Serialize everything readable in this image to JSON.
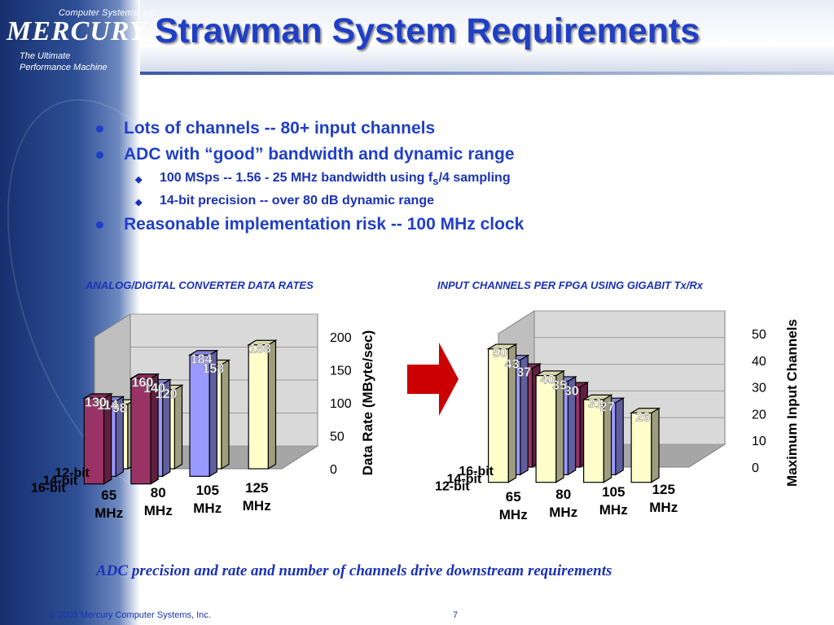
{
  "branding": {
    "company_small": "Computer Systems, Inc.",
    "company_name": "MERCURY",
    "tagline_line1": "The Ultimate",
    "tagline_line2": "Performance Machine"
  },
  "slide": {
    "title": "Strawman System Requirements",
    "bullets": [
      "Lots of channels -- 80+ input channels",
      "ADC with “good” bandwidth and dynamic range",
      "Reasonable implementation risk -- 100 MHz clock"
    ],
    "sub_bullets": {
      "first_prefix": "100 MSps -- 1.56 - 25 MHz bandwidth using f",
      "first_subscript": "s",
      "first_suffix": "/4 sampling",
      "second": "14-bit precision -- over 80 dB dynamic range"
    },
    "caption": "ADC precision and rate and number of channels drive downstream requirements",
    "footer_copyright": "© 2003 Mercury Computer Systems, Inc.",
    "page_number": "7"
  },
  "colors": {
    "series_16bit": "#993366",
    "series_14bit": "#9999ff",
    "series_12bit": "#ffffcc",
    "arrow": "#cc0000",
    "title": "#1f3fc6"
  },
  "chart_data": [
    {
      "type": "bar",
      "subtype": "3d-clustered",
      "title": "ANALOG/DIGITAL CONVERTER DATA RATES",
      "categories": [
        "65 MHz",
        "80 MHz",
        "105 MHz",
        "125 MHz"
      ],
      "series": [
        {
          "name": "16-bit",
          "values": [
            130,
            160,
            null,
            null
          ]
        },
        {
          "name": "14-bit",
          "values": [
            114,
            140,
            184,
            null
          ]
        },
        {
          "name": "12-bit",
          "values": [
            98,
            120,
            158,
            188
          ]
        }
      ],
      "ylabel": "Data Rate (MByte/sec)",
      "ylim": [
        0,
        200
      ],
      "yticks": [
        0,
        50,
        100,
        150,
        200
      ],
      "data_labels": true,
      "legend": "depth-axis-left"
    },
    {
      "type": "bar",
      "subtype": "3d-clustered",
      "title": "INPUT CHANNELS PER FPGA USING GIGABIT Tx/Rx",
      "categories": [
        "65 MHz",
        "80 MHz",
        "105 MHz",
        "125 MHz"
      ],
      "series": [
        {
          "name": "12-bit",
          "values": [
            50,
            40,
            31,
            26
          ]
        },
        {
          "name": "14-bit",
          "values": [
            43,
            35,
            27,
            null
          ]
        },
        {
          "name": "16-bit",
          "values": [
            37,
            30,
            null,
            null
          ]
        }
      ],
      "ylabel": "Maximum Input Channels",
      "ylim": [
        0,
        50
      ],
      "yticks": [
        0,
        10,
        20,
        30,
        40,
        50
      ],
      "data_labels": true,
      "legend": "depth-axis-left"
    }
  ]
}
